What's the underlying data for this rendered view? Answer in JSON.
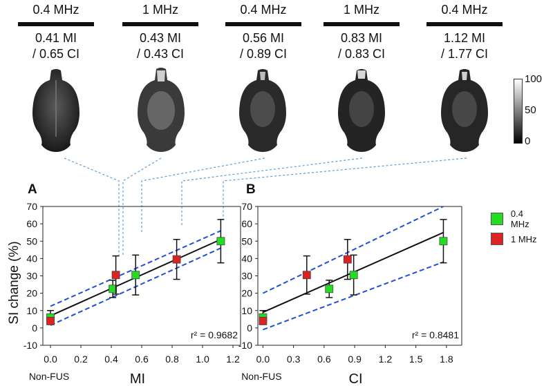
{
  "columns": [
    {
      "freq": "0.4 MHz",
      "mi": "0.41 MI",
      "ci": "/ 0.65 CI"
    },
    {
      "freq": "1 MHz",
      "mi": "0.43 MI",
      "ci": "/ 0.43 CI"
    },
    {
      "freq": "0.4 MHz",
      "mi": "0.56 MI",
      "ci": "/ 0.89 CI"
    },
    {
      "freq": "1 MHz",
      "mi": "0.83 MI",
      "ci": "/ 0.83 CI"
    },
    {
      "freq": "0.4 MHz",
      "mi": "1.12 MI",
      "ci": "/ 1.77 CI"
    }
  ],
  "colorbar": {
    "max": "100",
    "mid": "50",
    "min": "0"
  },
  "legend": [
    {
      "label": "0.4 MHz",
      "color": "#22dd22"
    },
    {
      "label": "1 MHz",
      "color": "#dd2222"
    }
  ],
  "colors": {
    "fit": "#111111",
    "ci_band": "#1f4fd6",
    "connector": "#5a9ad8"
  },
  "chart_data": [
    {
      "panel": "A",
      "type": "scatter",
      "xlabel": "MI",
      "x_extra_label": "Non-FUS",
      "ylabel": "SI change (%)",
      "xlim": [
        -0.05,
        1.25
      ],
      "ylim": [
        -10,
        70
      ],
      "xticks": [
        "0.0",
        "0.2",
        "0.4",
        "0.6",
        "0.8",
        "1.0",
        "1.2"
      ],
      "xtick_values": [
        0.0,
        0.2,
        0.4,
        0.6,
        0.8,
        1.0,
        1.2
      ],
      "yticks": [
        -10,
        0,
        10,
        20,
        30,
        40,
        50,
        60,
        70
      ],
      "annotation": "r² = 0.9682",
      "points": [
        {
          "x": 0.0,
          "y": 6,
          "err": 4,
          "group": "0.4 MHz"
        },
        {
          "x": 0.0,
          "y": 4,
          "err": 2,
          "group": "1 MHz"
        },
        {
          "x": 0.41,
          "y": 22.5,
          "err": 5,
          "group": "0.4 MHz"
        },
        {
          "x": 0.43,
          "y": 30.5,
          "err": 11,
          "group": "1 MHz"
        },
        {
          "x": 0.56,
          "y": 30.5,
          "err": 11.5,
          "group": "0.4 MHz"
        },
        {
          "x": 0.83,
          "y": 39.5,
          "err": 11.5,
          "group": "1 MHz"
        },
        {
          "x": 1.12,
          "y": 50,
          "err": 12.5,
          "group": "0.4 MHz"
        }
      ],
      "fit": [
        [
          0.0,
          7
        ],
        [
          1.12,
          51
        ]
      ],
      "band_upper": [
        [
          0.0,
          12.5
        ],
        [
          1.12,
          56
        ]
      ],
      "band_lower": [
        [
          0.0,
          1.5
        ],
        [
          1.12,
          46
        ]
      ]
    },
    {
      "panel": "B",
      "type": "scatter",
      "xlabel": "CI",
      "x_extra_label": "Non-FUS",
      "ylabel": "",
      "xlim": [
        -0.05,
        1.95
      ],
      "ylim": [
        -10,
        70
      ],
      "xticks": [
        "0.0",
        "0.3",
        "0.6",
        "0.9",
        "1.2",
        "1.5",
        "1.8"
      ],
      "xtick_values": [
        0.0,
        0.3,
        0.6,
        0.9,
        1.2,
        1.5,
        1.8
      ],
      "yticks": [
        -10,
        0,
        10,
        20,
        30,
        40,
        50,
        60,
        70
      ],
      "annotation": "r² = 0.8481",
      "points": [
        {
          "x": 0.0,
          "y": 6,
          "err": 4,
          "group": "0.4 MHz"
        },
        {
          "x": 0.0,
          "y": 4,
          "err": 2,
          "group": "1 MHz"
        },
        {
          "x": 0.43,
          "y": 30.5,
          "err": 11,
          "group": "1 MHz"
        },
        {
          "x": 0.65,
          "y": 22.5,
          "err": 5,
          "group": "0.4 MHz"
        },
        {
          "x": 0.83,
          "y": 39.5,
          "err": 11.5,
          "group": "1 MHz"
        },
        {
          "x": 0.89,
          "y": 30.5,
          "err": 11.5,
          "group": "0.4 MHz"
        },
        {
          "x": 1.77,
          "y": 50,
          "err": 12.5,
          "group": "0.4 MHz"
        }
      ],
      "fit": [
        [
          0.0,
          9
        ],
        [
          1.77,
          55
        ]
      ],
      "band_upper": [
        [
          0.0,
          20
        ],
        [
          1.77,
          70
        ]
      ],
      "band_lower": [
        [
          0.0,
          -1
        ],
        [
          1.77,
          38
        ]
      ]
    }
  ]
}
